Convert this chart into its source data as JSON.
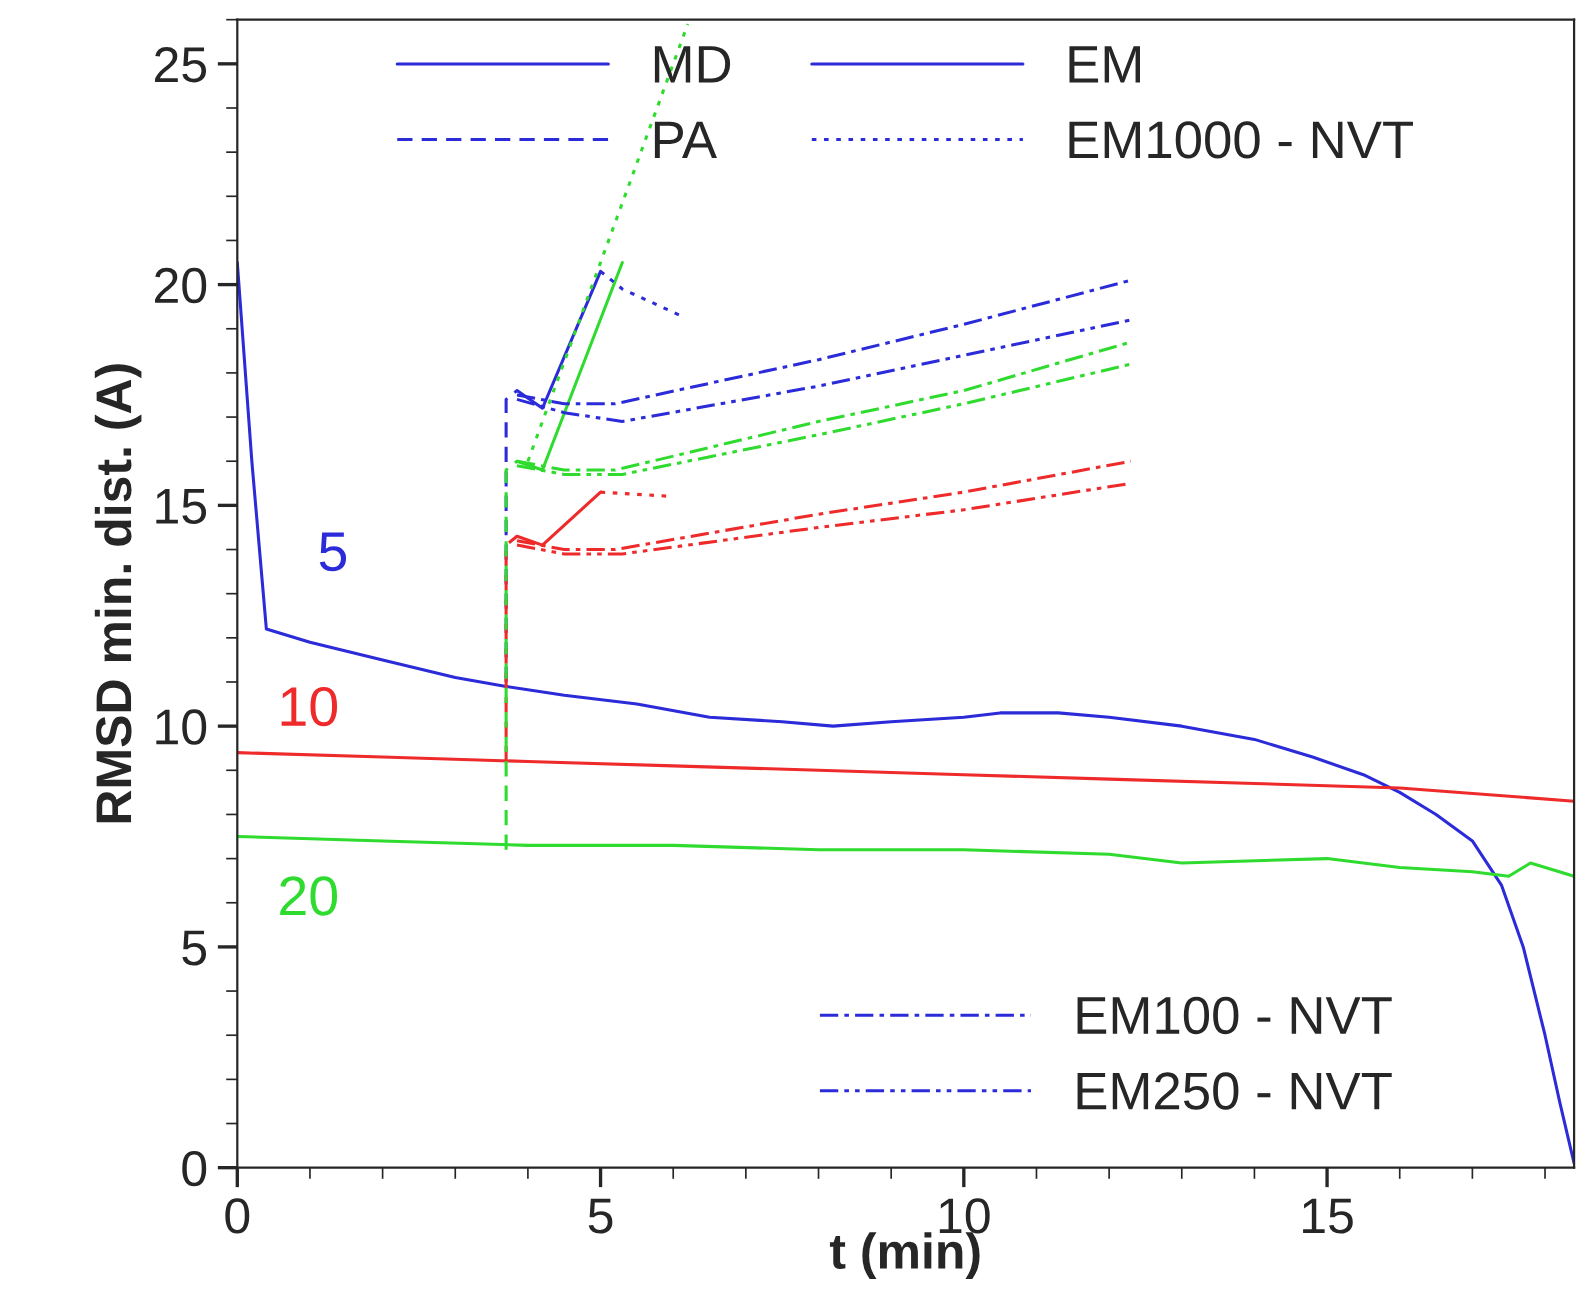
{
  "chart_data": {
    "type": "line",
    "xlabel": "t (min)",
    "ylabel": "RMSD min. dist. (A)",
    "xlim": [
      0,
      18.4
    ],
    "ylim": [
      0,
      26
    ],
    "xticks": [
      0,
      5,
      10,
      15
    ],
    "yticks": [
      0,
      5,
      10,
      15,
      20,
      25
    ],
    "legend": "top",
    "annotations": [
      "5",
      "10",
      "20"
    ],
    "series": [
      {
        "name": "MD",
        "color": "#2b2bd9",
        "line_style": "solid",
        "x": [
          0,
          0.2,
          0.4,
          1,
          2,
          3,
          3.7,
          4.5,
          5.5,
          6.5,
          7.5,
          8.2,
          9,
          10,
          10.5,
          11.3,
          12,
          13,
          14,
          14.8,
          15.5,
          16,
          16.5,
          17,
          17.4,
          17.7,
          18,
          18.2,
          18.4
        ],
        "values": [
          20.5,
          16,
          12.2,
          11.9,
          11.5,
          11.1,
          10.9,
          10.7,
          10.5,
          10.2,
          10.1,
          10.0,
          10.1,
          10.2,
          10.3,
          10.3,
          10.2,
          10.0,
          9.7,
          9.3,
          8.9,
          8.5,
          8.0,
          7.4,
          6.4,
          5.0,
          3.0,
          1.5,
          0.1
        ]
      },
      {
        "color": "#ee2a2a",
        "line_style": "solid",
        "x": [
          0,
          2,
          4,
          6,
          8,
          10,
          12,
          14,
          16,
          18.4
        ],
        "values": [
          9.4,
          9.3,
          9.2,
          9.1,
          9.0,
          8.9,
          8.8,
          8.7,
          8.6,
          8.3
        ]
      },
      {
        "color": "#2edb2e",
        "line_style": "solid",
        "x": [
          0,
          2,
          4,
          6,
          8,
          9,
          10,
          12,
          13,
          15,
          16,
          17,
          17.5,
          17.8,
          18.4
        ],
        "values": [
          7.5,
          7.4,
          7.3,
          7.3,
          7.2,
          7.2,
          7.2,
          7.1,
          6.9,
          7.0,
          6.8,
          6.7,
          6.6,
          6.9,
          6.6
        ]
      },
      {
        "name": "EM",
        "color": "#2b2bd9",
        "line_style": "solid",
        "x": [
          3.85,
          4.2,
          5.0
        ],
        "values": [
          17.6,
          17.2,
          20.3
        ]
      },
      {
        "color": "#ee2a2a",
        "line_style": "solid",
        "x": [
          3.85,
          4.2,
          5.0
        ],
        "values": [
          14.3,
          14.1,
          15.3
        ]
      },
      {
        "color": "#2edb2e",
        "line_style": "solid",
        "x": [
          3.85,
          4.2,
          5.3
        ],
        "values": [
          16.0,
          15.8,
          20.5
        ]
      },
      {
        "name": "PA",
        "color": "#2b2bd9",
        "line_style": "dashed",
        "x": [
          3.7,
          3.7,
          3.85
        ],
        "values": [
          11.0,
          17.4,
          17.6
        ]
      },
      {
        "color": "#ee2a2a",
        "line_style": "dashed",
        "x": [
          3.7,
          3.7,
          3.85
        ],
        "values": [
          9.2,
          14.1,
          14.3
        ]
      },
      {
        "color": "#2edb2e",
        "line_style": "dashed",
        "x": [
          3.7,
          3.7,
          3.85
        ],
        "values": [
          7.2,
          15.8,
          16.0
        ]
      },
      {
        "name": "EM1000 - NVT",
        "color": "#2b2bd9",
        "line_style": "dotted",
        "x": [
          5.0,
          5.3,
          6.1
        ],
        "values": [
          20.3,
          19.9,
          19.3
        ]
      },
      {
        "color": "#ee2a2a",
        "line_style": "dotted",
        "x": [
          5.0,
          6.0
        ],
        "values": [
          15.3,
          15.2
        ]
      },
      {
        "color": "#2edb2e",
        "line_style": "dotted",
        "x": [
          4.0,
          6.2
        ],
        "values": [
          16.0,
          25.9
        ]
      },
      {
        "name": "EM100 - NVT",
        "color": "#2b2bd9",
        "line_style": "dashdot",
        "x": [
          3.85,
          4.5,
          5.2,
          8,
          10,
          12.3
        ],
        "values": [
          17.5,
          17.3,
          17.3,
          18.3,
          19.1,
          20.1
        ]
      },
      {
        "color": "#ee2a2a",
        "line_style": "dashdot",
        "x": [
          3.85,
          4.5,
          5.2,
          8,
          10,
          12.3
        ],
        "values": [
          14.2,
          14.0,
          14.0,
          14.8,
          15.3,
          16.0
        ]
      },
      {
        "color": "#2edb2e",
        "line_style": "dashdot",
        "x": [
          3.85,
          4.5,
          5.2,
          8,
          10,
          12.3
        ],
        "values": [
          16.0,
          15.8,
          15.8,
          16.9,
          17.6,
          18.7
        ]
      },
      {
        "name": "EM250 - NVT",
        "color": "#2b2bd9",
        "line_style": "dashdotdot",
        "x": [
          3.85,
          4.5,
          5.3,
          8,
          10,
          12.3
        ],
        "values": [
          17.4,
          17.1,
          16.9,
          17.7,
          18.4,
          19.2
        ]
      },
      {
        "color": "#ee2a2a",
        "line_style": "dashdotdot",
        "x": [
          3.85,
          4.5,
          5.3,
          8,
          10,
          12.3
        ],
        "values": [
          14.1,
          13.9,
          13.9,
          14.5,
          14.9,
          15.5
        ]
      },
      {
        "color": "#2edb2e",
        "line_style": "dashdotdot",
        "x": [
          3.85,
          4.5,
          5.3,
          8,
          10,
          12.3
        ],
        "values": [
          15.9,
          15.7,
          15.7,
          16.6,
          17.3,
          18.2
        ]
      }
    ]
  }
}
